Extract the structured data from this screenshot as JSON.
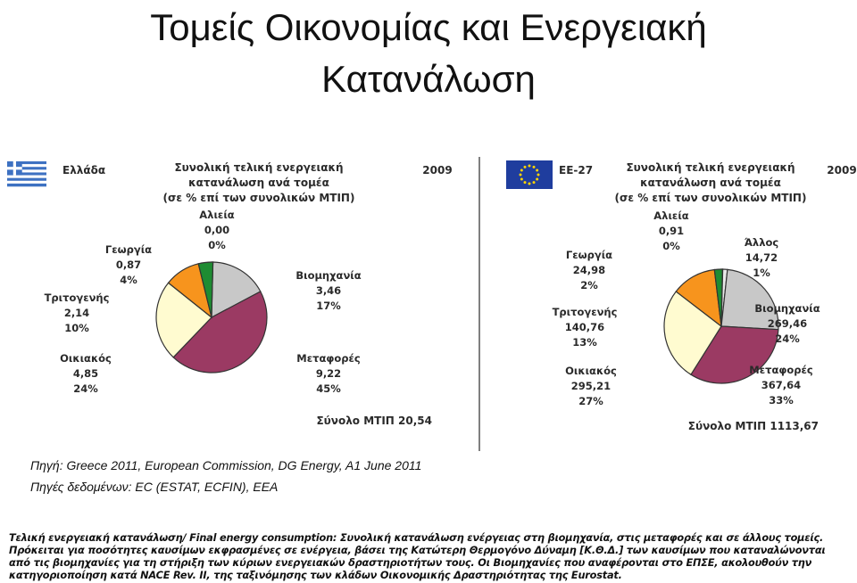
{
  "title_line1": "Τομείς Οικονομίας και Ενεργειακή",
  "title_line2": "Κατανάλωση",
  "source_line1": "Πηγή: Greece 2011, European Commission, DG Energy, A1  June 2011",
  "source_line2": "Πηγές δεδομένων: EC (ESTAT, ECFIN), EEA",
  "note_term": "Τελική ενεργειακή κατανάλωση/ Final energy consumption:",
  "note_text": " Συνολική κατανάλωση ενέργειας στη βιομηχανία, στις μεταφορές και σε άλλους τομείς. Πρόκειται για ποσότητες καυσίμων εκφρασμένες σε ενέργεια, βάσει της Κατώτερη Θερμογόνο Δύναμη [Κ.Θ.Δ.] των καυσίμων που καταναλώνονται από τις βιομηχανίες για τη στήριξη των κύριων ενεργειακών δραστηριοτήτων τους. Οι Βιομηχανίες που αναφέρονται στο ΕΠΣΕ, ακολουθούν την κατηγοριοποίηση κατά NACE Rev. II, της ταξινόμησης των κλάδων Οικονομικής Δραστηριότητας της Eurostat.",
  "colors": {
    "industry": "#c8c8c8",
    "transport": "#9b3a63",
    "household": "#fffbd0",
    "tertiary": "#f7941d",
    "agriculture": "#1e8c32",
    "fishing": "#e0e0e0",
    "other": "#e8e8e8",
    "greece_blue": "#3d71c2",
    "eu_blue": "#1f3d9e",
    "eu_star": "#ffd400"
  },
  "chart_data": [
    {
      "type": "pie",
      "region": "Ελλάδα",
      "year": "2009",
      "title_lines": [
        "Συνολική τελική ενεργειακή",
        "κατανάλωση ανά τομέα",
        "(σε % επί των συνολικών ΜΤΙΠ)"
      ],
      "total_label": "Σύνολο ΜΤΙΠ",
      "total_value": "20,54",
      "slices": [
        {
          "name": "Βιομηχανία",
          "value": 3.46,
          "value_label": "3,46",
          "pct": "17%",
          "color_key": "industry"
        },
        {
          "name": "Μεταφορές",
          "value": 9.22,
          "value_label": "9,22",
          "pct": "45%",
          "color_key": "transport"
        },
        {
          "name": "Οικιακός",
          "value": 4.85,
          "value_label": "4,85",
          "pct": "24%",
          "color_key": "household"
        },
        {
          "name": "Τριτογενής",
          "value": 2.14,
          "value_label": "2,14",
          "pct": "10%",
          "color_key": "tertiary"
        },
        {
          "name": "Γεωργία",
          "value": 0.87,
          "value_label": "0,87",
          "pct": "4%",
          "color_key": "agriculture"
        },
        {
          "name": "Αλιεία",
          "value": 0.0,
          "value_label": "0,00",
          "pct": "0%",
          "color_key": "fishing"
        }
      ]
    },
    {
      "type": "pie",
      "region": "ΕΕ-27",
      "year": "2009",
      "title_lines": [
        "Συνολική τελική ενεργειακή",
        "κατανάλωση ανά τομέα",
        "(σε % επί των συνολικών ΜΤΙΠ)"
      ],
      "total_label": "Σύνολο ΜΤΙΠ",
      "total_value": "1113,67",
      "slices": [
        {
          "name": "Βιομηχανία",
          "value": 269.46,
          "value_label": "269,46",
          "pct": "24%",
          "color_key": "industry"
        },
        {
          "name": "Μεταφορές",
          "value": 367.64,
          "value_label": "367,64",
          "pct": "33%",
          "color_key": "transport"
        },
        {
          "name": "Οικιακός",
          "value": 295.21,
          "value_label": "295,21",
          "pct": "27%",
          "color_key": "household"
        },
        {
          "name": "Τριτογενής",
          "value": 140.76,
          "value_label": "140,76",
          "pct": "13%",
          "color_key": "tertiary"
        },
        {
          "name": "Γεωργία",
          "value": 24.98,
          "value_label": "24,98",
          "pct": "2%",
          "color_key": "agriculture"
        },
        {
          "name": "Αλιεία",
          "value": 0.91,
          "value_label": "0,91",
          "pct": "0%",
          "color_key": "fishing"
        },
        {
          "name": "Άλλος",
          "value": 14.72,
          "value_label": "14,72",
          "pct": "1%",
          "color_key": "other"
        }
      ]
    }
  ]
}
